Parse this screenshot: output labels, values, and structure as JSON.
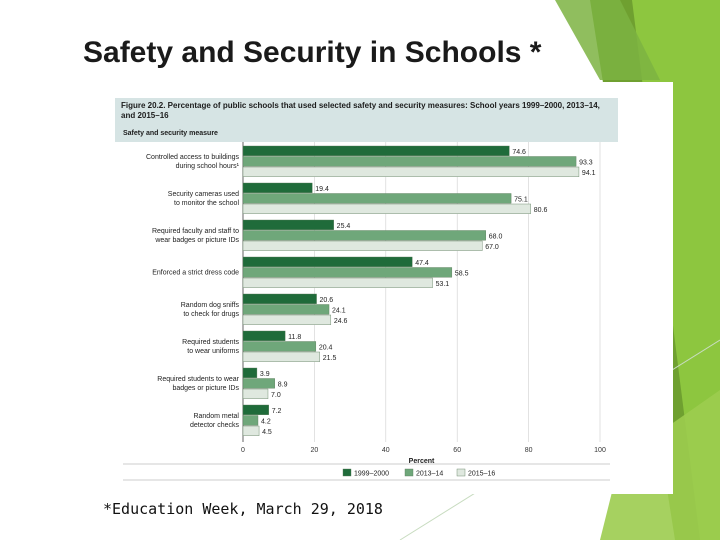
{
  "slide": {
    "title": "Safety and Security in Schools *",
    "citation": "*Education Week, March 29, 2018",
    "accent_colors": [
      "#8dc63f",
      "#6fa030"
    ]
  },
  "figure": {
    "caption": "Figure 20.2. Percentage of public schools that used selected safety and security measures: School years 1999–2000, 2013–14, and 2015–16",
    "measure_header": "Safety and security measure"
  },
  "chart_data": {
    "type": "bar",
    "orientation": "horizontal",
    "title": "Percentage of public schools that used selected safety and security measures: School years 1999–2000, 2013–14, and 2015–16",
    "xlabel": "Percent",
    "ylabel": "Safety and security measure",
    "xlim": [
      0,
      100
    ],
    "xticks": [
      "0",
      "20",
      "40",
      "60",
      "80",
      "100"
    ],
    "categories": [
      [
        "Controlled access to buildings",
        "during school hours¹"
      ],
      [
        "Security cameras used",
        "to monitor the school"
      ],
      [
        "Required faculty and staff to",
        "wear badges or picture IDs"
      ],
      [
        "Enforced a strict dress code"
      ],
      [
        "Random dog sniffs",
        "to check for drugs"
      ],
      [
        "Required students",
        "to wear uniforms"
      ],
      [
        "Required students to wear",
        "badges or picture IDs"
      ],
      [
        "Random metal",
        "detector checks"
      ]
    ],
    "series": [
      {
        "name": "1999–2000",
        "color": "#1f6b3a",
        "values": [
          74.6,
          19.4,
          25.4,
          47.4,
          20.6,
          11.8,
          3.9,
          7.2
        ]
      },
      {
        "name": "2013–14",
        "color": "#6fa77a",
        "values": [
          93.3,
          75.1,
          68.0,
          58.5,
          24.1,
          20.4,
          8.9,
          4.2
        ]
      },
      {
        "name": "2015–16",
        "color": "#dfe8df",
        "values": [
          94.1,
          80.6,
          67.0,
          53.1,
          24.6,
          21.5,
          7.0,
          4.5
        ]
      }
    ]
  }
}
